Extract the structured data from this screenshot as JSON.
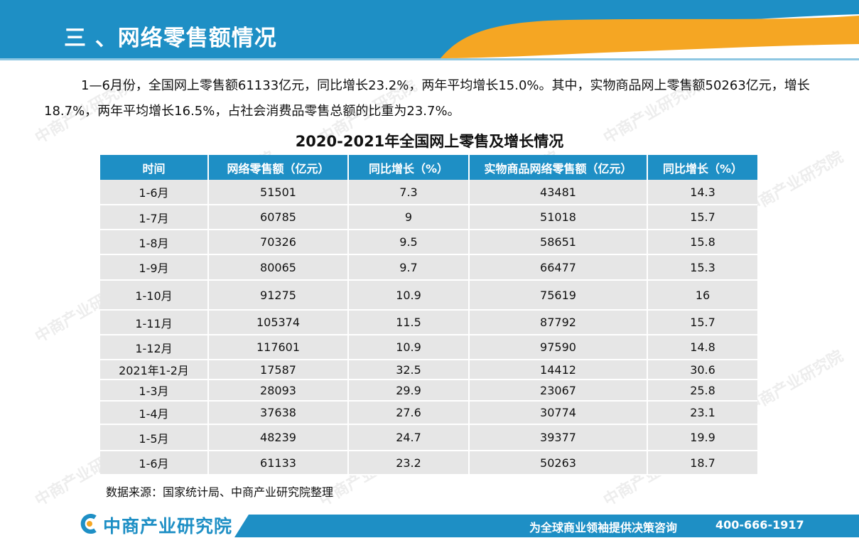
{
  "header": {
    "title": "三 、网络零售额情况"
  },
  "intro": {
    "text": "1—6月份，全国网上零售额61133亿元，同比增长23.2%，两年平均增长15.0%。其中，实物商品网上零售额50263亿元，增长18.7%，两年平均增长16.5%，占社会消费品零售总额的比重为23.7%。"
  },
  "table": {
    "title": "2020-2021年全国网上零售及增长情况",
    "headers": [
      "时间",
      "网络零售额（亿元）",
      "同比增长（%）",
      "实物商品网络零售额（亿元）",
      "同比增长（%）"
    ],
    "rows": [
      [
        "1-6月",
        "51501",
        "7.3",
        "43481",
        "14.3"
      ],
      [
        "1-7月",
        "60785",
        "9",
        "51018",
        "15.7"
      ],
      [
        "1-8月",
        "70326",
        "9.5",
        "58651",
        "15.8"
      ],
      [
        "1-9月",
        "80065",
        "9.7",
        "66477",
        "15.3"
      ],
      [
        "1-10月",
        "91275",
        "10.9",
        "75619",
        "16"
      ],
      [
        "1-11月",
        "105374",
        "11.5",
        "87792",
        "15.7"
      ],
      [
        "1-12月",
        "117601",
        "10.9",
        "97590",
        "14.8"
      ],
      [
        "2021年1-2月",
        "17587",
        "32.5",
        "14412",
        "30.6"
      ],
      [
        "1-3月",
        "28093",
        "29.9",
        "23067",
        "25.8"
      ],
      [
        "1-4月",
        "37638",
        "27.6",
        "30774",
        "23.1"
      ],
      [
        "1-5月",
        "48239",
        "24.7",
        "39377",
        "19.9"
      ],
      [
        "1-6月",
        "61133",
        "23.2",
        "50263",
        "18.7"
      ]
    ],
    "source": "数据来源：国家统计局、中商产业研究院整理"
  },
  "footer": {
    "logo_text": "中商产业研究院",
    "slogan": "为全球商业领袖提供决策咨询",
    "phone": "400-666-1917"
  },
  "watermark": {
    "text": "中商产业研究院"
  },
  "colors": {
    "primary_blue": "#1e8fc5",
    "accent_orange": "#f5a623",
    "cell_gray": "#e6e6e6"
  }
}
